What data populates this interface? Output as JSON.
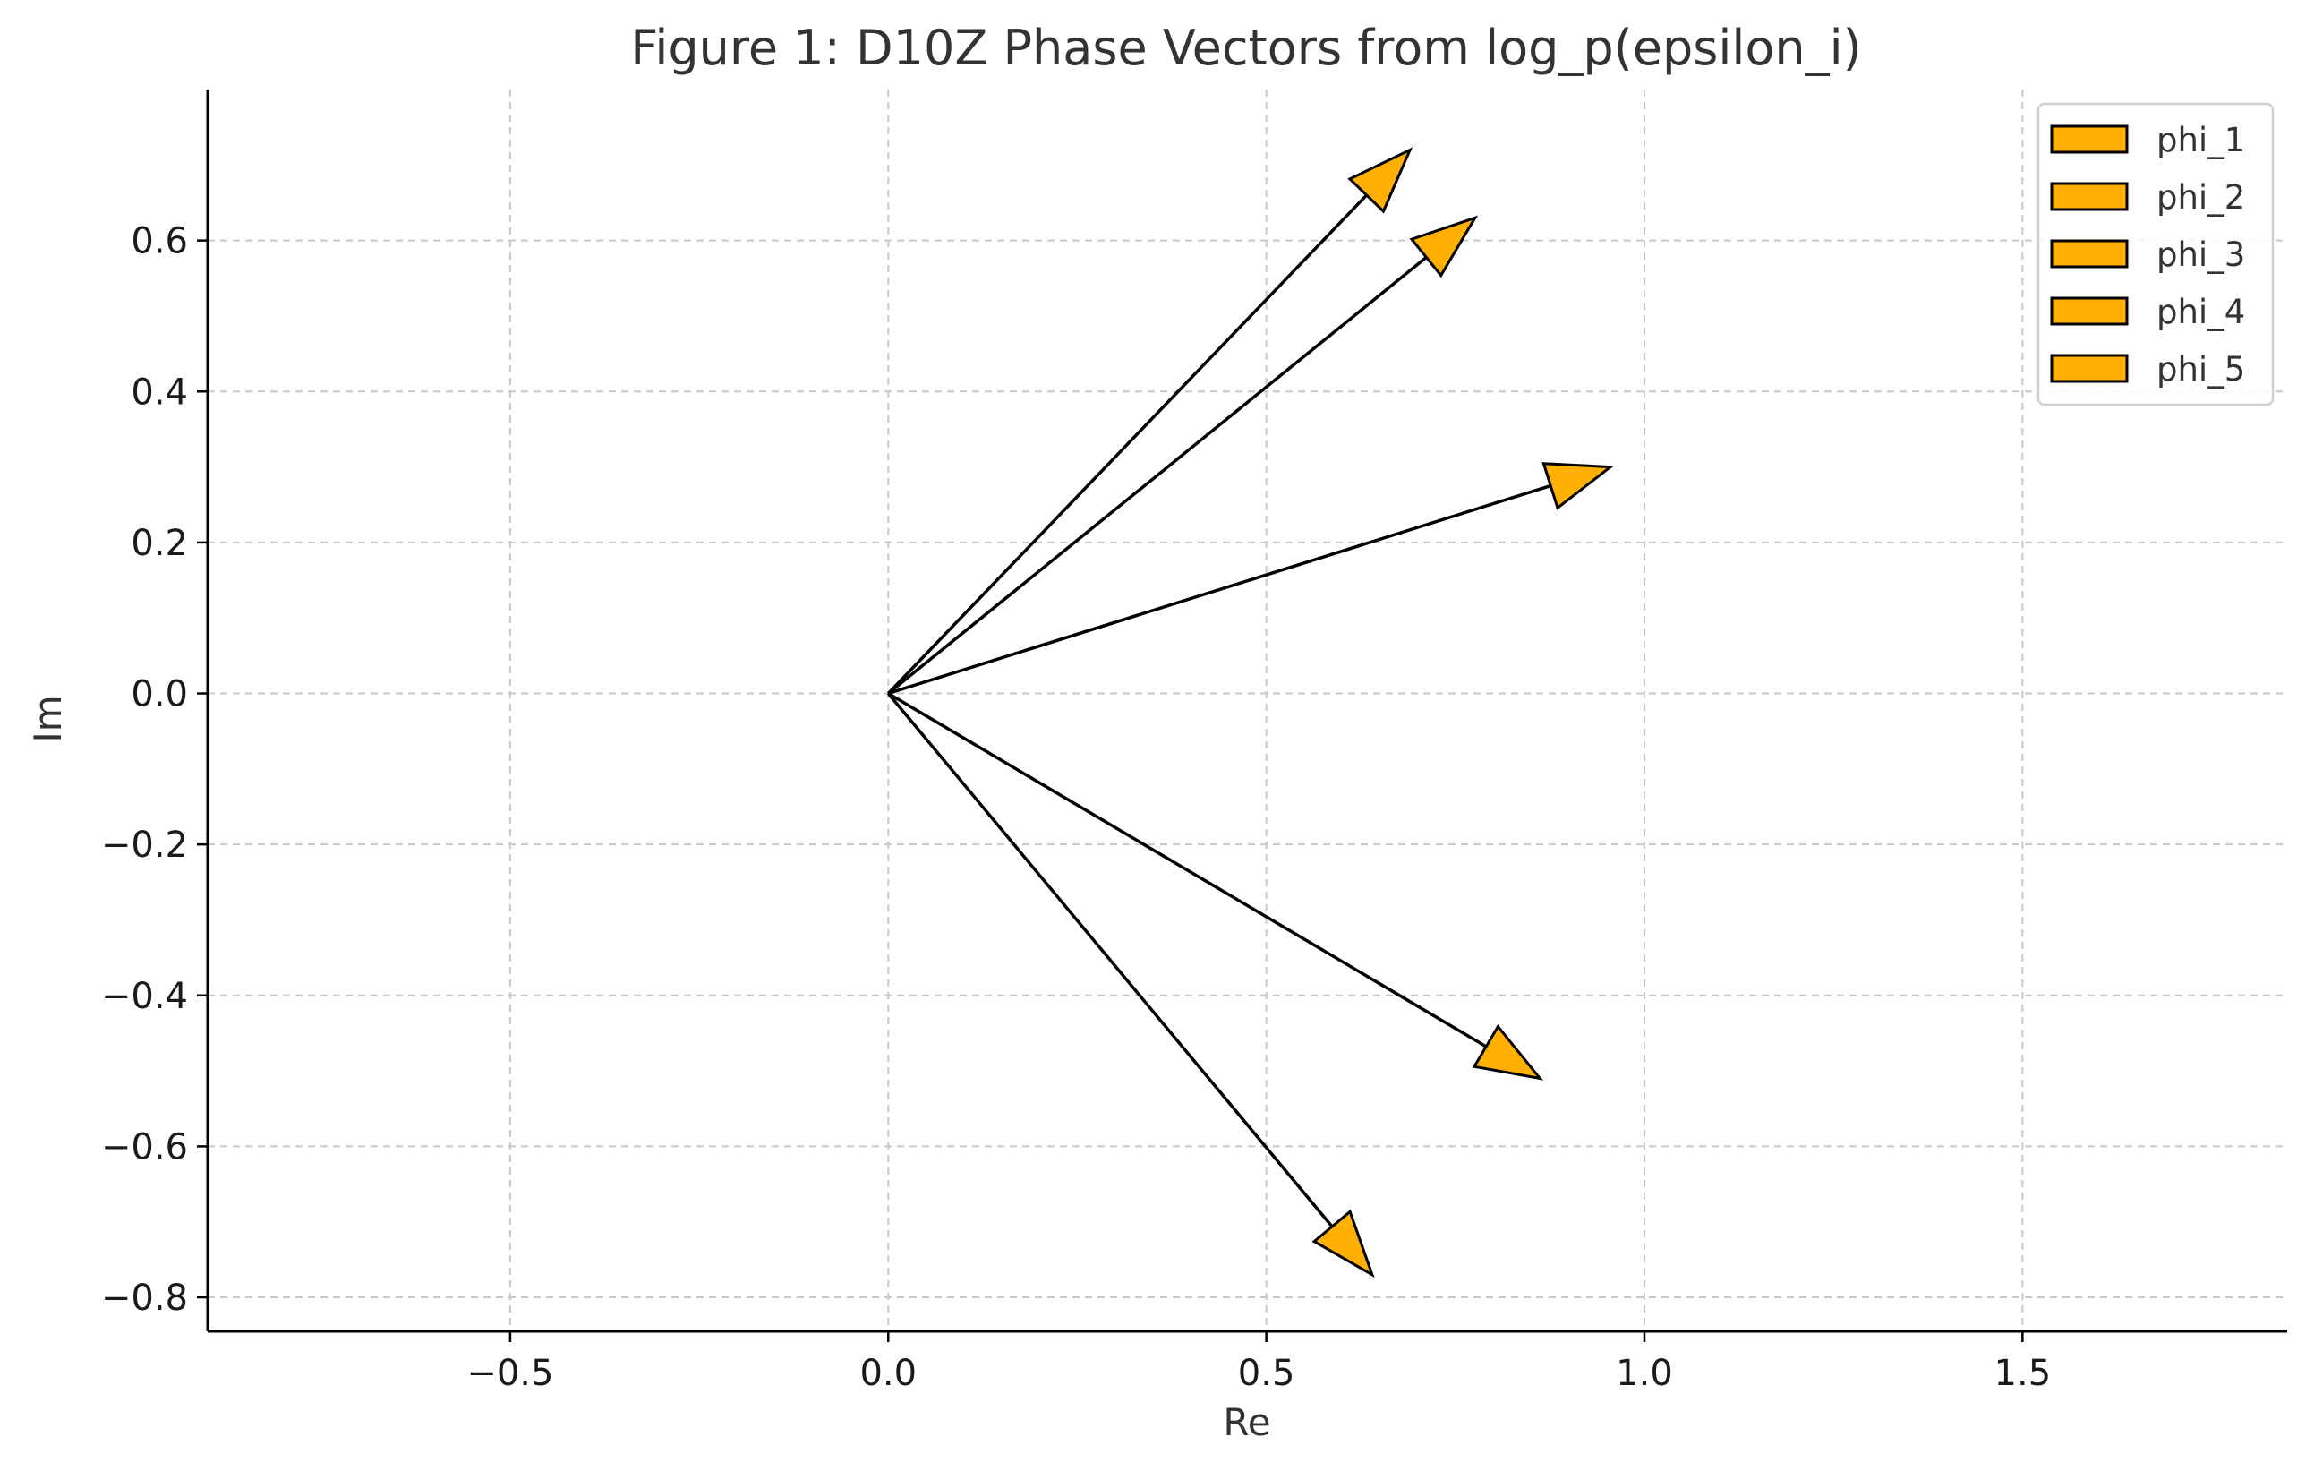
{
  "chart_data": {
    "type": "vector",
    "title": "Figure 1: D10Z Phase Vectors from log_p(epsilon_i)",
    "xlabel": "Re",
    "ylabel": "Im",
    "xlim": [
      -0.9,
      1.85
    ],
    "ylim": [
      -0.845,
      0.8
    ],
    "xticks": [
      -0.5,
      0.0,
      0.5,
      1.0,
      1.5
    ],
    "xtick_labels": [
      "−0.5",
      "0.0",
      "0.5",
      "1.0",
      "1.5"
    ],
    "yticks": [
      -0.8,
      -0.6,
      -0.4,
      -0.2,
      0.0,
      0.2,
      0.4,
      0.6
    ],
    "ytick_labels": [
      "−0.8",
      "−0.6",
      "−0.4",
      "−0.2",
      "0.0",
      "0.2",
      "0.4",
      "0.6"
    ],
    "grid": true,
    "legend_position": "top-right",
    "arrow_color": "#ffb000",
    "series": [
      {
        "name": "phi_1",
        "x0": 0,
        "y0": 0,
        "dx": 0.69,
        "dy": 0.72
      },
      {
        "name": "phi_2",
        "x0": 0,
        "y0": 0,
        "dx": 0.776,
        "dy": 0.63
      },
      {
        "name": "phi_3",
        "x0": 0,
        "y0": 0,
        "dx": 0.955,
        "dy": 0.3
      },
      {
        "name": "phi_4",
        "x0": 0,
        "y0": 0,
        "dx": 0.862,
        "dy": -0.51
      },
      {
        "name": "phi_5",
        "x0": 0,
        "y0": 0,
        "dx": 0.64,
        "dy": -0.77
      }
    ]
  }
}
